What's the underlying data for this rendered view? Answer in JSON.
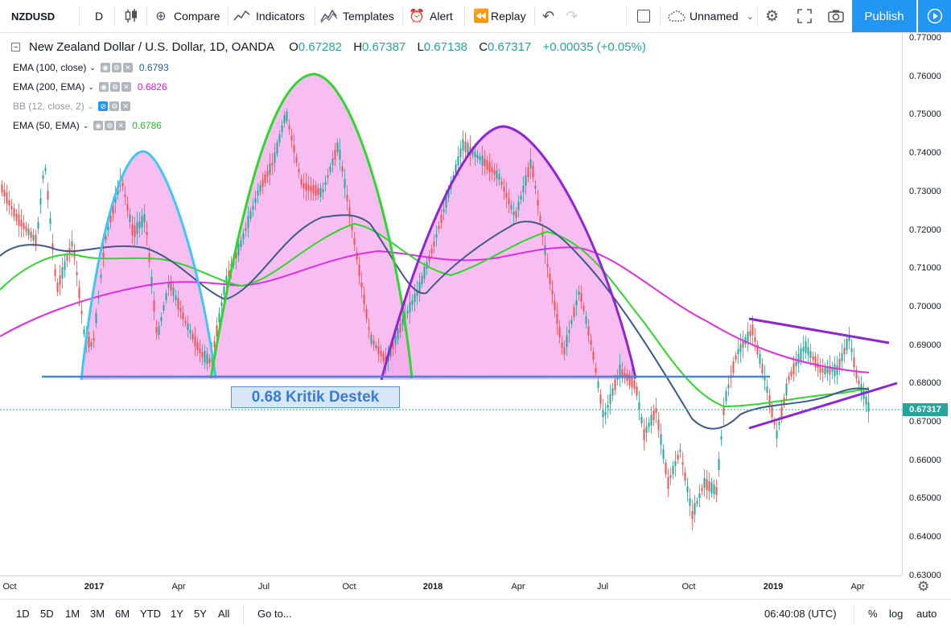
{
  "toolbar": {
    "symbol": "NZDUSD",
    "interval": "D",
    "compare": "Compare",
    "indicators": "Indicators",
    "templates": "Templates",
    "alert": "Alert",
    "replay": "Replay",
    "layout_name": "Unnamed",
    "publish": "Publish"
  },
  "legend": {
    "title": "New Zealand Dollar / U.S. Dollar, 1D, OANDA",
    "o_label": "O",
    "o": "0.67282",
    "h_label": "H",
    "h": "0.67387",
    "l_label": "L",
    "l": "0.67138",
    "c_label": "C",
    "c": "0.67317",
    "change": "+0.00035 (+0.05%)"
  },
  "indicators": [
    {
      "label": "EMA (100, close)",
      "value": "0.6793",
      "color": "#2a5b8c"
    },
    {
      "label": "EMA (200, EMA)",
      "value": "0.6826",
      "color": "#d81bd6"
    },
    {
      "label": "BB (12, close, 2)",
      "value": "",
      "color": "#9598a1"
    },
    {
      "label": "EMA (50, EMA)",
      "value": "0.6786",
      "color": "#19c419"
    }
  ],
  "annotation": {
    "support_text": "0.68 Kritik Destek"
  },
  "price_axis": {
    "labels": [
      "0.77000",
      "0.76000",
      "0.75000",
      "0.74000",
      "0.73000",
      "0.72000",
      "0.71000",
      "0.70000",
      "0.69000",
      "0.68000",
      "0.67000",
      "0.66000",
      "0.65000",
      "0.64000",
      "0.63000"
    ],
    "current_price": "0.67317"
  },
  "time_axis": {
    "labels": [
      {
        "text": "Oct",
        "bold": false
      },
      {
        "text": "2017",
        "bold": true
      },
      {
        "text": "Apr",
        "bold": false
      },
      {
        "text": "Jul",
        "bold": false
      },
      {
        "text": "Oct",
        "bold": false
      },
      {
        "text": "2018",
        "bold": true
      },
      {
        "text": "Apr",
        "bold": false
      },
      {
        "text": "Jul",
        "bold": false
      },
      {
        "text": "Oct",
        "bold": false
      },
      {
        "text": "2019",
        "bold": true
      },
      {
        "text": "Apr",
        "bold": false
      }
    ]
  },
  "bottom": {
    "ranges": [
      "1D",
      "5D",
      "1M",
      "3M",
      "6M",
      "YTD",
      "1Y",
      "5Y",
      "All"
    ],
    "goto": "Go to...",
    "clock": "06:40:08 (UTC)",
    "percent": "%",
    "log": "log",
    "auto": "auto"
  },
  "colors": {
    "up": "#26a69a",
    "down": "#ef5350",
    "accent": "#2196f3"
  }
}
